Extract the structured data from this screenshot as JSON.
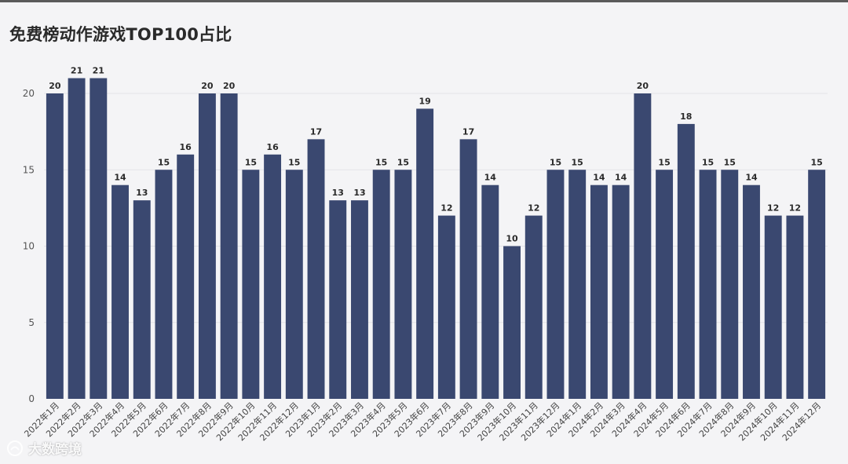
{
  "title": "免费榜动作游戏TOP100占比",
  "watermark": "大数跨境",
  "chart_data": {
    "type": "bar",
    "title": "免费榜动作游戏TOP100占比",
    "xlabel": "",
    "ylabel": "",
    "ylim": [
      0,
      22
    ],
    "yticks": [
      0,
      5,
      10,
      15,
      20
    ],
    "grid": true,
    "bar_color": "#3a4870",
    "categories": [
      "2022年1月",
      "2022年2月",
      "2022年3月",
      "2022年4月",
      "2022年5月",
      "2022年6月",
      "2022年7月",
      "2022年8月",
      "2022年9月",
      "2022年10月",
      "2022年11月",
      "2022年12月",
      "2023年1月",
      "2023年2月",
      "2023年3月",
      "2023年4月",
      "2023年5月",
      "2023年6月",
      "2023年7月",
      "2023年8月",
      "2023年9月",
      "2023年10月",
      "2023年11月",
      "2023年12月",
      "2024年1月",
      "2024年2月",
      "2024年3月",
      "2024年4月",
      "2024年5月",
      "2024年6月",
      "2024年7月",
      "2024年8月",
      "2024年9月",
      "2024年10月",
      "2024年11月",
      "2024年12月"
    ],
    "values": [
      20,
      21,
      21,
      14,
      13,
      15,
      16,
      20,
      20,
      15,
      16,
      15,
      17,
      13,
      13,
      15,
      15,
      19,
      12,
      17,
      14,
      10,
      12,
      15,
      15,
      14,
      14,
      20,
      15,
      18,
      15,
      15,
      14,
      12,
      12,
      15
    ]
  }
}
